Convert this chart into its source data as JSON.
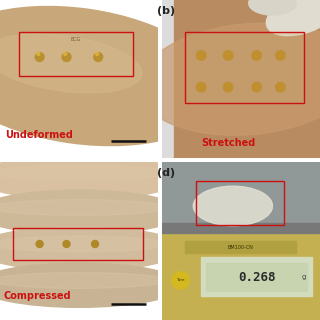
{
  "figure_bg": "#ffffff",
  "panel_b_label": "(b)",
  "panel_d_label": "(d)",
  "panel_text_a": "Undeformed",
  "panel_text_b": "Stretched",
  "panel_text_c": "Compressed",
  "panel_text_d": "0.268",
  "text_color_red": "#cc1111",
  "rect_color": "#cc1111",
  "scale_bar_color": "#111111",
  "skin_a": "#c8a882",
  "skin_b": "#bb9068",
  "skin_c": "#cdb090",
  "bg_a_sky": "#aec4d8",
  "bg_b_white": "#e8e4e0",
  "bg_d_scale": "#c0b060",
  "label_fontsize": 8,
  "annot_fontsize": 7,
  "white_divider": "#ffffff"
}
